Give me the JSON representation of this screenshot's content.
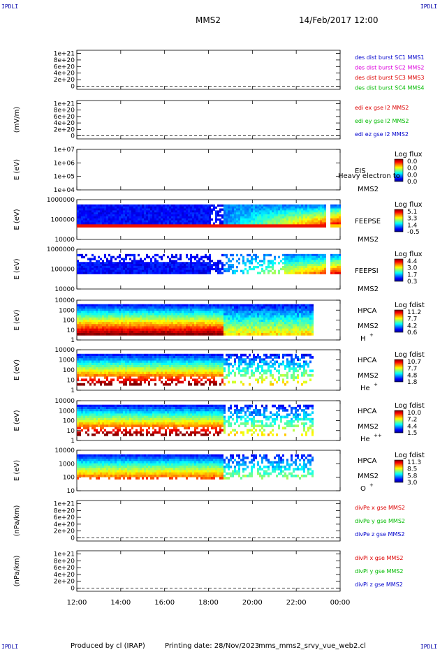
{
  "header": {
    "title": "MMS2",
    "date": "14/Feb/2017 12:00",
    "corner_left": "IPDLI",
    "corner_right": "IPDLI"
  },
  "footer": {
    "producer": "Produced by cl (IRAP)",
    "printed": "Printing date: 28/Nov/2023",
    "script": "mms_mms2_srvy_vue_web2.cl"
  },
  "time_axis": {
    "ticks": [
      "12:00",
      "14:00",
      "16:00",
      "18:00",
      "20:00",
      "22:00",
      "00:00"
    ]
  },
  "colors": {
    "blue": "#0000cc",
    "red": "#dd0000",
    "green": "#00bb00",
    "magenta": "#dd00dd"
  },
  "chart_data": [
    {
      "type": "line",
      "ylabel": "",
      "yticks": [
        "1e+21",
        "8e+20",
        "6e+20",
        "4e+20",
        "2e+20",
        "0"
      ],
      "series": [
        {
          "name": "des dist burst SC1 MMS1",
          "color": "#0000cc",
          "values": [
            0,
            0
          ]
        },
        {
          "name": "des dist burst SC2 MMS2",
          "color": "#dd00dd",
          "values": [
            0,
            0
          ]
        },
        {
          "name": "des dist burst SC3 MMS3",
          "color": "#dd0000",
          "values": [
            0,
            0
          ]
        },
        {
          "name": "des dist burst SC4 MMS4",
          "color": "#00bb00",
          "values": [
            0,
            0
          ]
        }
      ]
    },
    {
      "type": "line",
      "ylabel": "(mV/m)",
      "yticks": [
        "1e+21",
        "8e+20",
        "6e+20",
        "4e+20",
        "2e+20",
        "0"
      ],
      "series": [
        {
          "name": "edi ex gse l2 MMS2",
          "color": "#dd0000",
          "values": [
            0,
            0
          ]
        },
        {
          "name": "edi ey gse l2 MMS2",
          "color": "#00bb00",
          "values": [
            0,
            0
          ]
        },
        {
          "name": "edi ez gse l2 MMS2",
          "color": "#0000cc",
          "values": [
            0,
            0
          ]
        }
      ]
    },
    {
      "type": "heatmap",
      "ylabel": "E (eV)",
      "yticks": [
        "1e+07",
        "1e+06",
        "1e+05",
        "1e+04"
      ],
      "instrument": "EIS",
      "overlay": "Heavy electron to",
      "spacecraft": "MMS2",
      "colorbar_label": "Log flux",
      "colorbar_ticks": [
        "0.0",
        "0.0",
        "0.0",
        "0.0"
      ]
    },
    {
      "type": "heatmap",
      "ylabel": "E (eV)",
      "yticks": [
        "1000000",
        "100000",
        "10000"
      ],
      "instrument": "FEEPSE",
      "spacecraft": "MMS2",
      "colorbar_label": "Log flux",
      "colorbar_ticks": [
        "5.1",
        "3.3",
        "1.4",
        "-0.5"
      ]
    },
    {
      "type": "heatmap",
      "ylabel": "E (eV)",
      "yticks": [
        "1000000",
        "100000",
        "10000"
      ],
      "instrument": "FEEPSI",
      "spacecraft": "MMS2",
      "colorbar_label": "Log flux",
      "colorbar_ticks": [
        "4.4",
        "3.0",
        "1.7",
        "0.3"
      ]
    },
    {
      "type": "heatmap",
      "ylabel": "E (eV)",
      "yticks": [
        "10000",
        "1000",
        "100",
        "10",
        "1"
      ],
      "instrument": "HPCA",
      "spacecraft": "MMS2",
      "species": "H",
      "species_sup": "+",
      "colorbar_label": "Log fdist",
      "colorbar_ticks": [
        "11.2",
        "7.7",
        "4.2",
        "0.6"
      ]
    },
    {
      "type": "heatmap",
      "ylabel": "E (eV)",
      "yticks": [
        "10000",
        "1000",
        "100",
        "10",
        "1"
      ],
      "instrument": "HPCA",
      "spacecraft": "MMS2",
      "species": "He",
      "species_sup": "+",
      "colorbar_label": "Log fdist",
      "colorbar_ticks": [
        "10.7",
        "7.7",
        "4.8",
        "1.8"
      ]
    },
    {
      "type": "heatmap",
      "ylabel": "E (eV)",
      "yticks": [
        "10000",
        "1000",
        "100",
        "10",
        "1"
      ],
      "instrument": "HPCA",
      "spacecraft": "MMS2",
      "species": "He",
      "species_sup": "++",
      "colorbar_label": "Log fdist",
      "colorbar_ticks": [
        "10.0",
        "7.2",
        "4.4",
        "1.5"
      ]
    },
    {
      "type": "heatmap",
      "ylabel": "E (eV)",
      "yticks": [
        "10000",
        "1000",
        "100",
        "10"
      ],
      "instrument": "HPCA",
      "spacecraft": "MMS2",
      "species": "O",
      "species_sup": "+",
      "colorbar_label": "Log fdist",
      "colorbar_ticks": [
        "11.3",
        "8.5",
        "5.8",
        "3.0"
      ]
    },
    {
      "type": "line",
      "ylabel": "(nPa/km)",
      "yticks": [
        "1e+21",
        "8e+20",
        "6e+20",
        "4e+20",
        "2e+20",
        "0"
      ],
      "series": [
        {
          "name": "divPe x gse MMS2",
          "color": "#dd0000",
          "values": [
            0,
            0
          ]
        },
        {
          "name": "divPe y gse MMS2",
          "color": "#00bb00",
          "values": [
            0,
            0
          ]
        },
        {
          "name": "divPe z gse MMS2",
          "color": "#0000cc",
          "values": [
            0,
            0
          ]
        }
      ]
    },
    {
      "type": "line",
      "ylabel": "(nPa/km)",
      "yticks": [
        "1e+21",
        "8e+20",
        "6e+20",
        "4e+20",
        "2e+20",
        "0"
      ],
      "series": [
        {
          "name": "divPi x gse MMS2",
          "color": "#dd0000",
          "values": [
            0,
            0
          ]
        },
        {
          "name": "divPi y gse MMS2",
          "color": "#00bb00",
          "values": [
            0,
            0
          ]
        },
        {
          "name": "divPi z gse MMS2",
          "color": "#0000cc",
          "values": [
            0,
            0
          ]
        }
      ]
    }
  ]
}
